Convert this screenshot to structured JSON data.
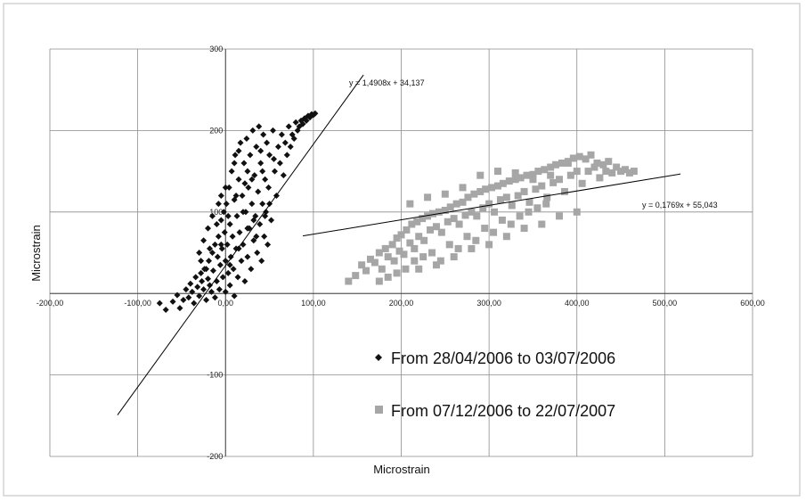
{
  "chart_data": {
    "type": "scatter",
    "title": "",
    "xlabel": "Microstrain",
    "ylabel": "Microstrain",
    "xlim": [
      -200,
      600
    ],
    "ylim": [
      -200,
      300
    ],
    "x_ticks": [
      -200,
      -100,
      0,
      100,
      200,
      300,
      400,
      500,
      600
    ],
    "x_tick_labels": [
      "-200,00",
      "-100,00",
      "0,00",
      "100,00",
      "200,00",
      "300,00",
      "400,00",
      "500,00",
      "600,00"
    ],
    "y_ticks": [
      -200,
      -100,
      100,
      200,
      300
    ],
    "y_tick_labels": [
      "-200",
      "-100",
      "100",
      "200",
      "300"
    ],
    "grid": true,
    "legend_position": "bottom-center-inside",
    "series": [
      {
        "name": "From 28/04/2006  to 03/07/2006",
        "marker": "diamond",
        "color": "#111111",
        "points": [
          [
            -75,
            -12
          ],
          [
            -68,
            -20
          ],
          [
            -60,
            -10
          ],
          [
            -55,
            -2
          ],
          [
            -52,
            -18
          ],
          [
            -48,
            -8
          ],
          [
            -45,
            5
          ],
          [
            -42,
            -5
          ],
          [
            -40,
            12
          ],
          [
            -38,
            2
          ],
          [
            -36,
            -12
          ],
          [
            -34,
            20
          ],
          [
            -32,
            8
          ],
          [
            -30,
            -3
          ],
          [
            -28,
            25
          ],
          [
            -27,
            15
          ],
          [
            -25,
            5
          ],
          [
            -24,
            30
          ],
          [
            -22,
            -8
          ],
          [
            -20,
            18
          ],
          [
            -19,
            40
          ],
          [
            -18,
            10
          ],
          [
            -16,
            2
          ],
          [
            -15,
            50
          ],
          [
            -14,
            28
          ],
          [
            -12,
            60
          ],
          [
            -12,
            -5
          ],
          [
            -10,
            15
          ],
          [
            -9,
            45
          ],
          [
            -8,
            70
          ],
          [
            -7,
            5
          ],
          [
            -6,
            35
          ],
          [
            -5,
            90
          ],
          [
            -4,
            55
          ],
          [
            -3,
            20
          ],
          [
            -2,
            100
          ],
          [
            -1,
            75
          ],
          [
            0,
            40
          ],
          [
            0,
            2
          ],
          [
            1,
            110
          ],
          [
            2,
            60
          ],
          [
            3,
            25
          ],
          [
            4,
            130
          ],
          [
            5,
            85
          ],
          [
            5,
            10
          ],
          [
            6,
            45
          ],
          [
            7,
            150
          ],
          [
            8,
            70
          ],
          [
            9,
            30
          ],
          [
            10,
            115
          ],
          [
            10,
            -3
          ],
          [
            11,
            170
          ],
          [
            12,
            55
          ],
          [
            13,
            95
          ],
          [
            14,
            20
          ],
          [
            15,
            140
          ],
          [
            16,
            75
          ],
          [
            17,
            185
          ],
          [
            18,
            40
          ],
          [
            19,
            120
          ],
          [
            20,
            60
          ],
          [
            21,
            160
          ],
          [
            22,
            15
          ],
          [
            23,
            100
          ],
          [
            24,
            190
          ],
          [
            25,
            45
          ],
          [
            26,
            130
          ],
          [
            27,
            80
          ],
          [
            28,
            170
          ],
          [
            29,
            30
          ],
          [
            30,
            110
          ],
          [
            31,
            200
          ],
          [
            32,
            65
          ],
          [
            33,
            145
          ],
          [
            34,
            95
          ],
          [
            35,
            180
          ],
          [
            36,
            50
          ],
          [
            37,
            125
          ],
          [
            38,
            205
          ],
          [
            39,
            85
          ],
          [
            40,
            160
          ],
          [
            41,
            40
          ],
          [
            42,
            110
          ],
          [
            43,
            195
          ],
          [
            44,
            70
          ],
          [
            45,
            140
          ],
          [
            46,
            100
          ],
          [
            47,
            185
          ],
          [
            48,
            60
          ],
          [
            49,
            130
          ],
          [
            50,
            170
          ],
          [
            52,
            90
          ],
          [
            54,
            200
          ],
          [
            56,
            150
          ],
          [
            58,
            120
          ],
          [
            60,
            180
          ],
          [
            62,
            160
          ],
          [
            64,
            195
          ],
          [
            66,
            145
          ],
          [
            68,
            185
          ],
          [
            70,
            170
          ],
          [
            72,
            205
          ],
          [
            74,
            180
          ],
          [
            76,
            195
          ],
          [
            78,
            190
          ],
          [
            80,
            210
          ],
          [
            82,
            200
          ],
          [
            84,
            205
          ],
          [
            86,
            212
          ],
          [
            88,
            208
          ],
          [
            90,
            215
          ],
          [
            92,
            212
          ],
          [
            94,
            218
          ],
          [
            96,
            216
          ],
          [
            98,
            220
          ],
          [
            100,
            219
          ],
          [
            102,
            221
          ],
          [
            -30,
            50
          ],
          [
            -25,
            65
          ],
          [
            -20,
            80
          ],
          [
            -15,
            95
          ],
          [
            -28,
            40
          ],
          [
            -10,
            85
          ],
          [
            -5,
            60
          ],
          [
            5,
            35
          ],
          [
            15,
            55
          ],
          [
            25,
            80
          ],
          [
            35,
            70
          ],
          [
            45,
            95
          ],
          [
            20,
            100
          ],
          [
            30,
            140
          ],
          [
            40,
            175
          ],
          [
            10,
            160
          ],
          [
            0,
            130
          ],
          [
            -5,
            120
          ],
          [
            15,
            175
          ],
          [
            25,
            150
          ],
          [
            -18,
            55
          ],
          [
            -22,
            30
          ],
          [
            -8,
            110
          ],
          [
            3,
            95
          ],
          [
            12,
            120
          ],
          [
            22,
            135
          ],
          [
            32,
            90
          ],
          [
            42,
            150
          ],
          [
            50,
            110
          ],
          [
            55,
            165
          ]
        ]
      },
      {
        "name": "From 07/12/2006  to 22/07/2007",
        "marker": "square",
        "color": "#a6a6a6",
        "points": [
          [
            140,
            15
          ],
          [
            148,
            22
          ],
          [
            155,
            35
          ],
          [
            160,
            28
          ],
          [
            165,
            42
          ],
          [
            170,
            38
          ],
          [
            175,
            50
          ],
          [
            178,
            30
          ],
          [
            182,
            55
          ],
          [
            185,
            45
          ],
          [
            190,
            60
          ],
          [
            192,
            40
          ],
          [
            195,
            68
          ],
          [
            198,
            52
          ],
          [
            200,
            72
          ],
          [
            203,
            48
          ],
          [
            206,
            78
          ],
          [
            210,
            62
          ],
          [
            212,
            85
          ],
          [
            215,
            55
          ],
          [
            218,
            88
          ],
          [
            220,
            70
          ],
          [
            224,
            92
          ],
          [
            226,
            65
          ],
          [
            230,
            95
          ],
          [
            233,
            78
          ],
          [
            236,
            98
          ],
          [
            240,
            82
          ],
          [
            243,
            100
          ],
          [
            246,
            75
          ],
          [
            250,
            102
          ],
          [
            253,
            88
          ],
          [
            256,
            106
          ],
          [
            260,
            92
          ],
          [
            263,
            110
          ],
          [
            266,
            85
          ],
          [
            270,
            112
          ],
          [
            273,
            96
          ],
          [
            276,
            118
          ],
          [
            280,
            100
          ],
          [
            283,
            122
          ],
          [
            286,
            95
          ],
          [
            290,
            125
          ],
          [
            293,
            105
          ],
          [
            296,
            128
          ],
          [
            300,
            110
          ],
          [
            303,
            130
          ],
          [
            306,
            100
          ],
          [
            310,
            132
          ],
          [
            313,
            115
          ],
          [
            316,
            135
          ],
          [
            320,
            118
          ],
          [
            323,
            138
          ],
          [
            326,
            108
          ],
          [
            330,
            140
          ],
          [
            333,
            120
          ],
          [
            336,
            142
          ],
          [
            340,
            125
          ],
          [
            343,
            145
          ],
          [
            346,
            112
          ],
          [
            350,
            146
          ],
          [
            353,
            128
          ],
          [
            356,
            150
          ],
          [
            360,
            132
          ],
          [
            363,
            152
          ],
          [
            366,
            118
          ],
          [
            370,
            155
          ],
          [
            373,
            136
          ],
          [
            376,
            158
          ],
          [
            380,
            140
          ],
          [
            383,
            160
          ],
          [
            386,
            125
          ],
          [
            390,
            162
          ],
          [
            393,
            145
          ],
          [
            396,
            166
          ],
          [
            400,
            150
          ],
          [
            403,
            168
          ],
          [
            406,
            135
          ],
          [
            410,
            165
          ],
          [
            413,
            150
          ],
          [
            416,
            170
          ],
          [
            420,
            155
          ],
          [
            423,
            160
          ],
          [
            426,
            142
          ],
          [
            430,
            158
          ],
          [
            433,
            150
          ],
          [
            436,
            162
          ],
          [
            440,
            148
          ],
          [
            445,
            155
          ],
          [
            450,
            150
          ],
          [
            455,
            152
          ],
          [
            460,
            148
          ],
          [
            465,
            150
          ],
          [
            175,
            15
          ],
          [
            185,
            20
          ],
          [
            195,
            25
          ],
          [
            205,
            30
          ],
          [
            215,
            40
          ],
          [
            225,
            45
          ],
          [
            235,
            50
          ],
          [
            245,
            40
          ],
          [
            255,
            60
          ],
          [
            265,
            55
          ],
          [
            275,
            70
          ],
          [
            285,
            65
          ],
          [
            295,
            80
          ],
          [
            305,
            75
          ],
          [
            315,
            90
          ],
          [
            325,
            85
          ],
          [
            335,
            95
          ],
          [
            345,
            100
          ],
          [
            355,
            105
          ],
          [
            365,
            110
          ],
          [
            220,
            30
          ],
          [
            240,
            35
          ],
          [
            260,
            45
          ],
          [
            280,
            55
          ],
          [
            300,
            60
          ],
          [
            320,
            70
          ],
          [
            340,
            80
          ],
          [
            360,
            85
          ],
          [
            380,
            95
          ],
          [
            400,
            100
          ],
          [
            210,
            110
          ],
          [
            230,
            118
          ],
          [
            250,
            122
          ],
          [
            270,
            130
          ],
          [
            290,
            145
          ],
          [
            310,
            150
          ],
          [
            330,
            148
          ],
          [
            350,
            140
          ],
          [
            370,
            145
          ],
          [
            390,
            160
          ]
        ]
      }
    ],
    "trendlines": [
      {
        "label": "y = 1,4908x + 34,137",
        "slope": 1.4908,
        "intercept": 34.137,
        "x_range": [
          -123,
          157
        ]
      },
      {
        "label": "y = 0,1769x + 55,043",
        "slope": 0.1769,
        "intercept": 55.043,
        "x_range": [
          88,
          518
        ]
      }
    ]
  }
}
